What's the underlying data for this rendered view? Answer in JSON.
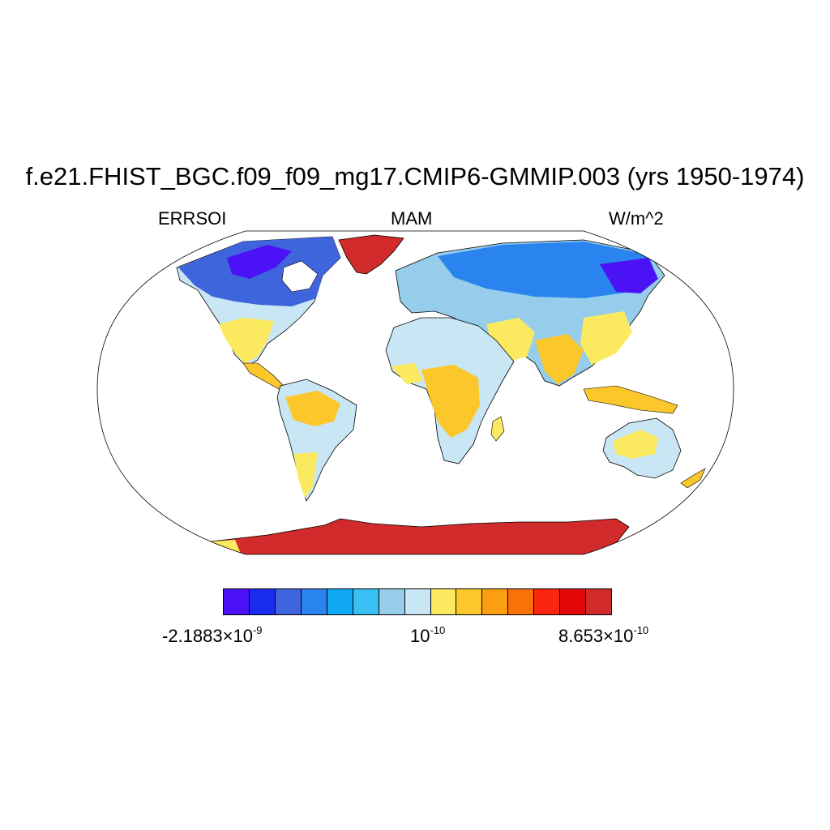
{
  "title": "f.e21.FHIST_BGC.f09_f09_mg17.CMIP6-GMMIP.003 (yrs 1950-1974)",
  "variable": "ERRSOI",
  "season": "MAM",
  "units": "W/m^2",
  "colorbar": {
    "colors": [
      "#4a12f5",
      "#1a2cf0",
      "#3f65dd",
      "#2a84ef",
      "#10a8f5",
      "#38c0f5",
      "#95cdeb",
      "#c9e6f5",
      "#fbea5f",
      "#fbc72a",
      "#fb9e11",
      "#fb7109",
      "#fb2610",
      "#e20708",
      "#d02a2a"
    ],
    "labels": [
      {
        "mantissa": "-2.1883×10",
        "exponent": "-9"
      },
      {
        "mantissa": "10",
        "exponent": "-10"
      },
      {
        "mantissa": "8.653×10",
        "exponent": "-10"
      }
    ]
  },
  "map": {
    "projection": "robinson",
    "ocean_color": "#ffffff",
    "coastline_color": "#000000"
  }
}
